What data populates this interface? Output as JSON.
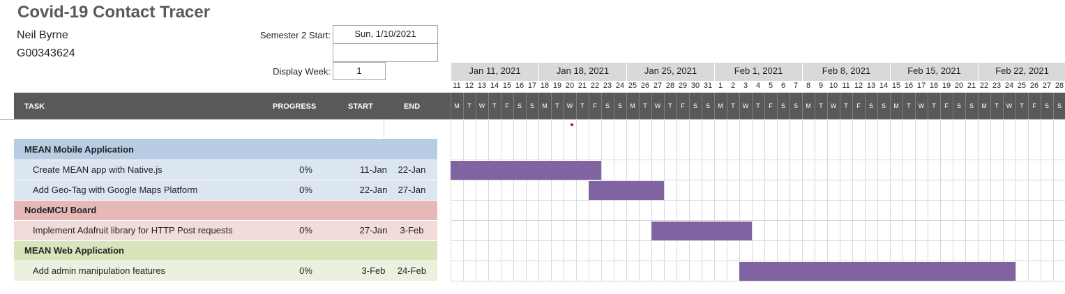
{
  "header": {
    "title": "Covid-19 Contact Tracer",
    "name": "Neil Byrne",
    "student_id": "G00343624",
    "semester_label": "Semester 2 Start:",
    "semester_value": "Sun, 1/10/2021",
    "display_week_label": "Display Week:",
    "display_week_value": "1"
  },
  "columns": {
    "task": "TASK",
    "progress": "PROGRESS",
    "start": "START",
    "end": "END"
  },
  "timeline": {
    "weeks": [
      "Jan 11, 2021",
      "Jan 18, 2021",
      "Jan 25, 2021",
      "Feb 1, 2021",
      "Feb 8, 2021",
      "Feb 15, 2021",
      "Feb 22, 2021"
    ],
    "day_numbers": [
      11,
      12,
      13,
      14,
      15,
      16,
      17,
      18,
      19,
      20,
      21,
      22,
      23,
      24,
      25,
      26,
      27,
      28,
      29,
      30,
      31,
      1,
      2,
      3,
      4,
      5,
      6,
      7,
      8,
      9,
      10,
      11,
      12,
      13,
      14,
      15,
      16,
      17,
      18,
      19,
      20,
      21,
      22,
      23,
      24,
      25,
      26,
      27,
      28
    ],
    "day_letters": [
      "M",
      "T",
      "W",
      "T",
      "F",
      "S",
      "S"
    ]
  },
  "tasks": [
    {
      "type": "phase",
      "label": "MEAN Mobile Application",
      "color": "#b8cce4"
    },
    {
      "type": "task",
      "label": "Create MEAN app with Native.js",
      "progress": "0%",
      "start": "11-Jan",
      "end": "22-Jan",
      "color": "#dce6f1",
      "bar_start_day": 0,
      "bar_end_day": 12
    },
    {
      "type": "task",
      "label": "Add Geo-Tag with Google Maps Platform",
      "progress": "0%",
      "start": "22-Jan",
      "end": "27-Jan",
      "color": "#dce6f1",
      "bar_start_day": 11,
      "bar_end_day": 17
    },
    {
      "type": "phase",
      "label": "NodeMCU Board",
      "color": "#e6b8b7"
    },
    {
      "type": "task",
      "label": "Implement Adafruit library for HTTP Post requests",
      "progress": "0%",
      "start": "27-Jan",
      "end": "3-Feb",
      "color": "#f2dcdb",
      "bar_start_day": 16,
      "bar_end_day": 24
    },
    {
      "type": "phase",
      "label": "MEAN Web Application",
      "color": "#d8e4bc"
    },
    {
      "type": "task",
      "label": "Add admin manipulation features",
      "progress": "0%",
      "start": "3-Feb",
      "end": "24-Feb",
      "color": "#ebf1de",
      "bar_start_day": 23,
      "bar_end_day": 45
    }
  ],
  "colors": {
    "bar": "#8064a2",
    "header_dark": "#595959",
    "week_header": "#d9d9d9",
    "today_marker": "#e00000"
  }
}
